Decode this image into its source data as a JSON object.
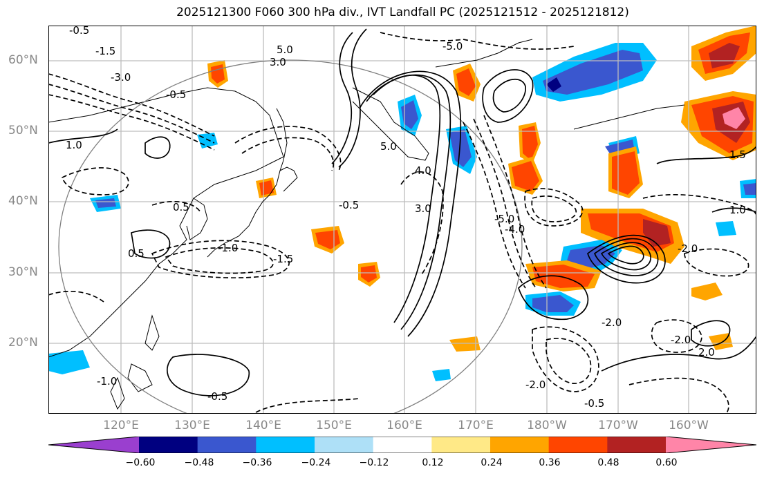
{
  "title": "2025121300 F060 300 hPa div., IVT Landfall PC (2025121512 - 2025121812)",
  "lat_labels": [
    "60°N",
    "50°N",
    "40°N",
    "30°N",
    "20°N"
  ],
  "lon_labels": [
    "120°E",
    "130°E",
    "140°E",
    "150°E",
    "160°E",
    "170°E",
    "180°W",
    "170°W",
    "160°W"
  ],
  "contour_labels": [
    "0.5",
    "1.0",
    "1.5",
    "2.0",
    "3.0",
    "4.0",
    "5.0",
    "-0.5",
    "-1.0",
    "-1.5",
    "-2.0",
    "-3.0",
    "-4.0",
    "-5.0"
  ],
  "colorbar": {
    "ticks": [
      "−0.60",
      "−0.48",
      "−0.36",
      "−0.24",
      "−0.12",
      "0.12",
      "0.24",
      "0.36",
      "0.48",
      "0.60"
    ],
    "colors": [
      "#9a3fcf",
      "#000080",
      "#3a57cf",
      "#00bfff",
      "#aee0f7",
      "#ffffff",
      "#ffe987",
      "#ffa500",
      "#ff4500",
      "#b22222",
      "#ff85a8"
    ]
  }
}
